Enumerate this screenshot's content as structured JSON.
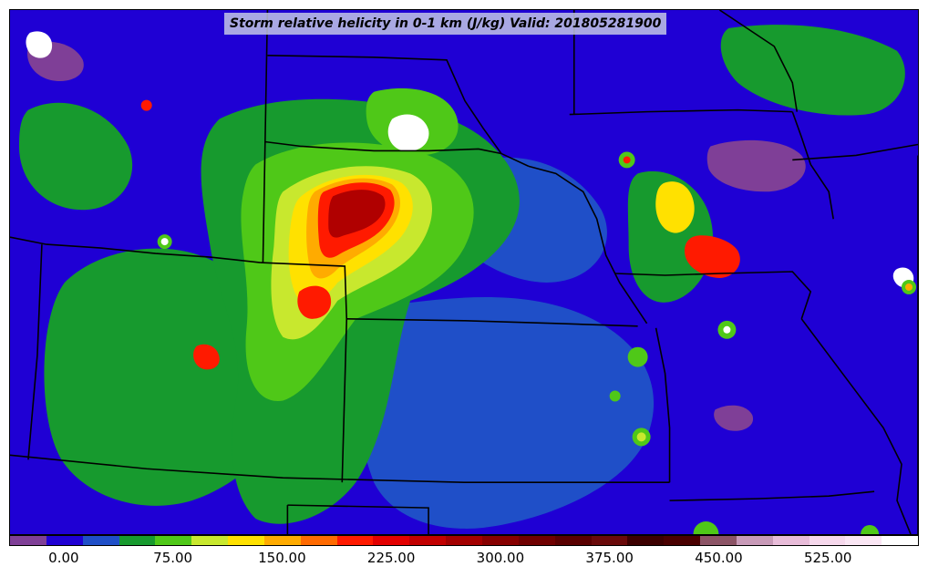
{
  "title": "Storm relative helicity in 0-1 km (J/kg) Valid: 201805281900",
  "colorbar": {
    "colors": [
      "#7f3f97",
      "#1f00d4",
      "#1f4fc8",
      "#179a2e",
      "#4fc818",
      "#c8e82e",
      "#ffe100",
      "#ffab00",
      "#ff6a00",
      "#ff1a00",
      "#e30000",
      "#c20000",
      "#a30000",
      "#870000",
      "#700000",
      "#5a0000",
      "#6a0a0a",
      "#3c0000",
      "#4a0000",
      "#8c5466",
      "#c89ab8",
      "#e8bcd9",
      "#f6d8ec",
      "#fae6f4",
      "#ffffff"
    ],
    "tick_labels": [
      "0.00",
      "75.00",
      "150.00",
      "225.00",
      "300.00",
      "375.00",
      "450.00",
      "525.00"
    ]
  },
  "map_colors": {
    "background": "#1f00d4",
    "low": "#1f4fc8",
    "green": "#179a2e",
    "light_green": "#4fc818",
    "yellow_green": "#c8e82e",
    "yellow": "#ffe100",
    "orange": "#ffab00",
    "red": "#ff1a00",
    "dark_red": "#b00000",
    "purple": "#7f3f97",
    "white": "#ffffff",
    "border": "#000000"
  }
}
